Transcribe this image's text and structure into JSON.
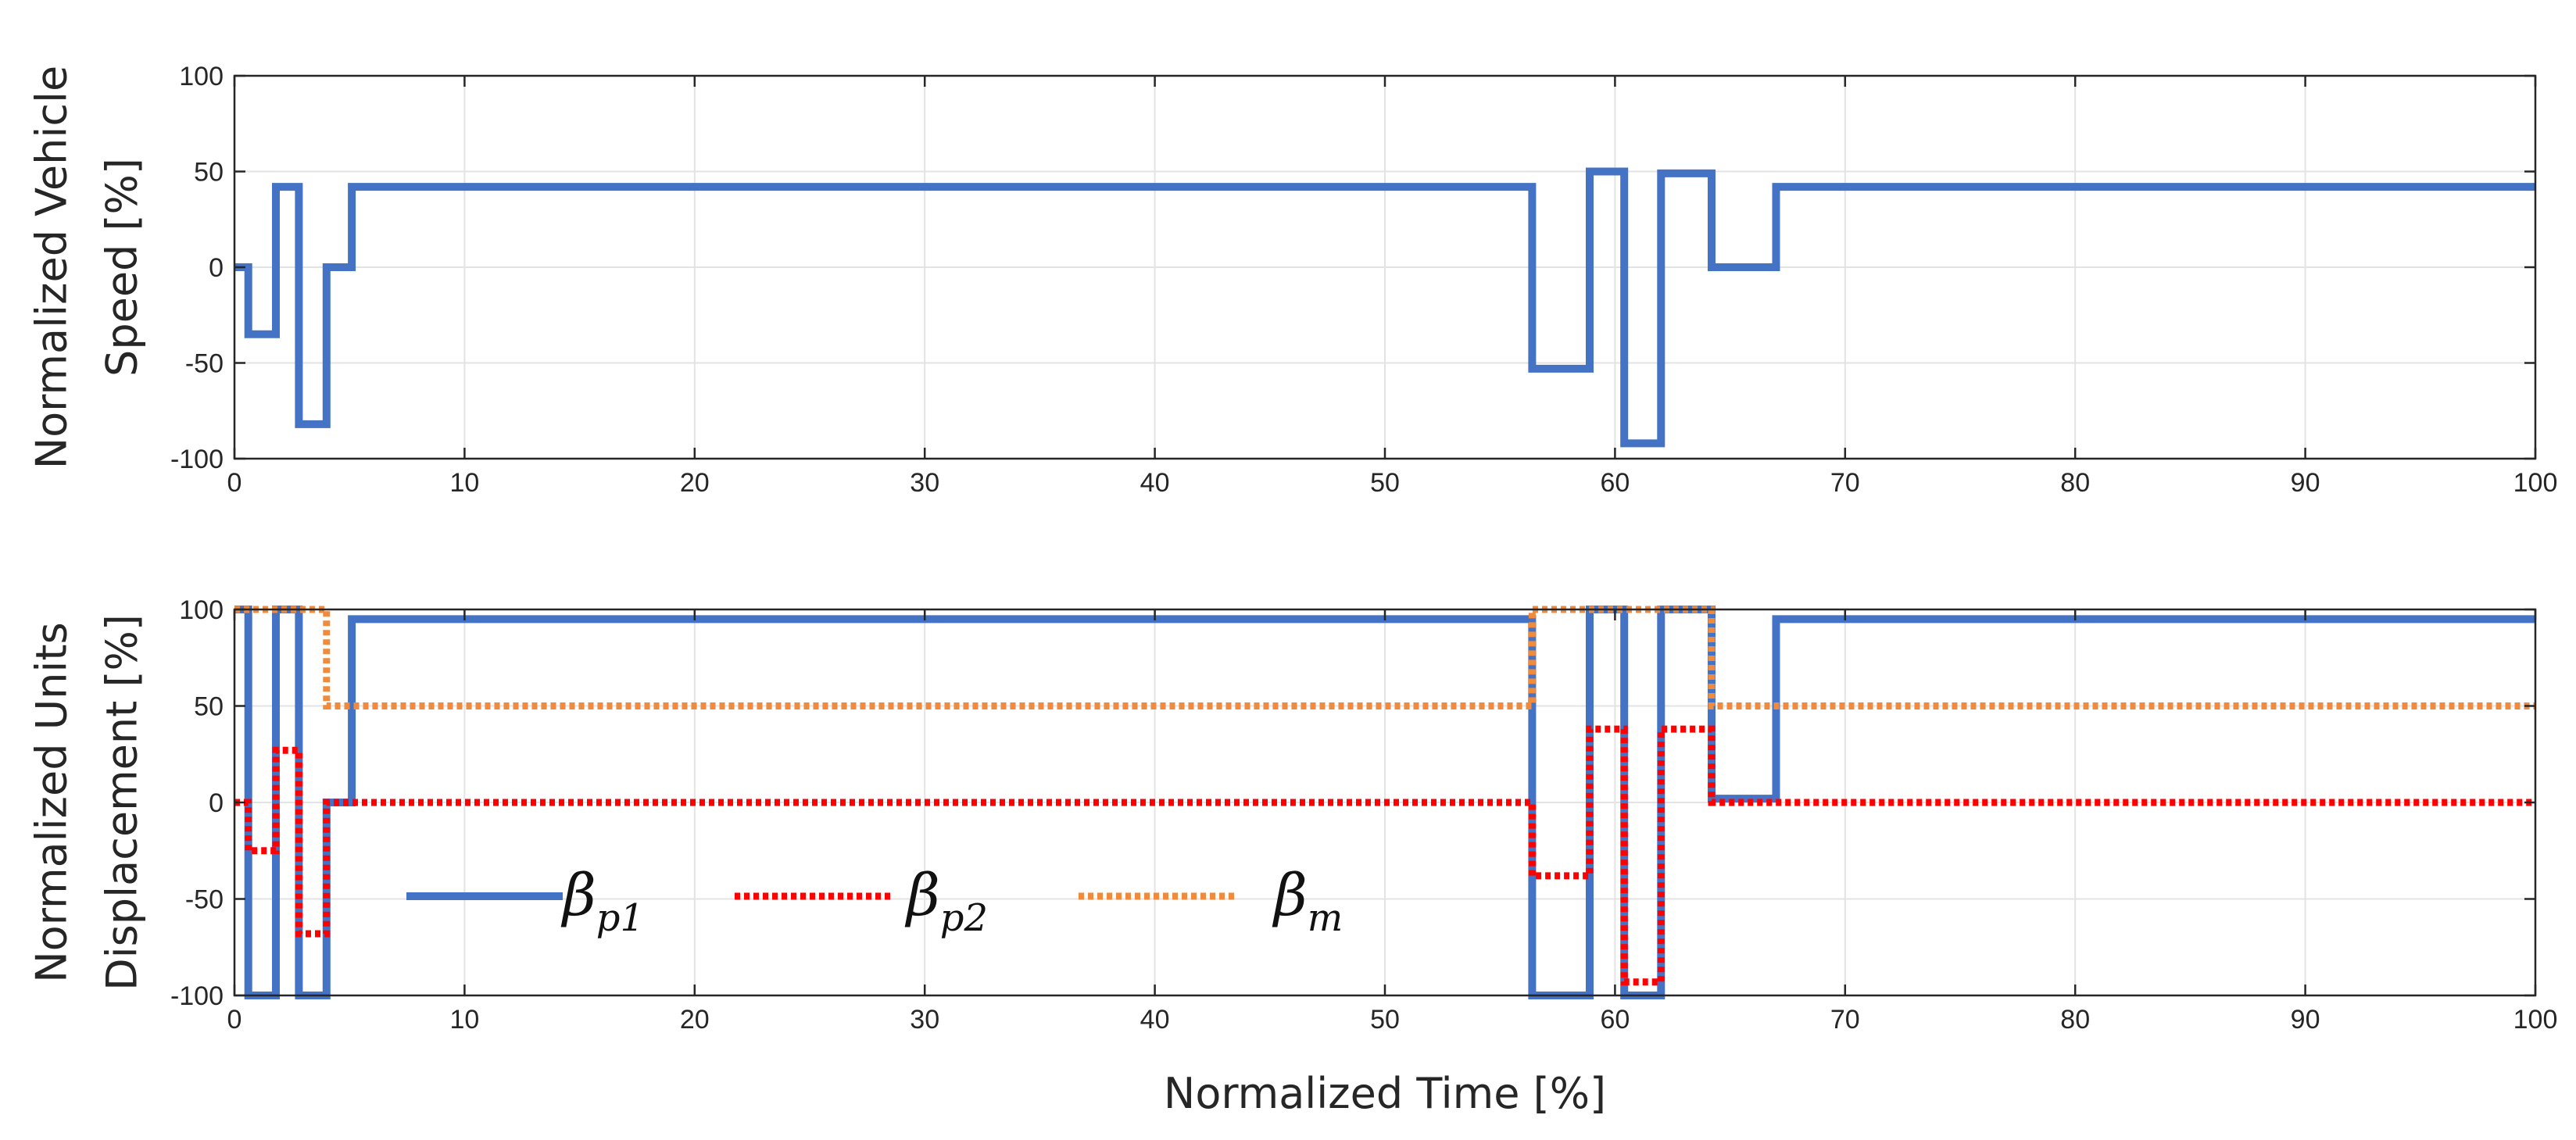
{
  "chart_data": [
    {
      "type": "line",
      "panel": "top",
      "ylabel_line1": "Normalized Vehicle",
      "ylabel_line2": "Speed [%]",
      "xlabel": "",
      "xlim": [
        0,
        100
      ],
      "ylim": [
        -100,
        100
      ],
      "xticks": [
        0,
        10,
        20,
        30,
        40,
        50,
        60,
        70,
        80,
        90,
        100
      ],
      "yticks": [
        -100,
        -50,
        0,
        50,
        100
      ],
      "grid": true,
      "series": [
        {
          "name": "Normalized Vehicle Speed",
          "color": "#4472C4",
          "style": "solid",
          "points": [
            [
              0,
              0
            ],
            [
              0.6,
              0
            ],
            [
              0.6,
              -35
            ],
            [
              1.8,
              -35
            ],
            [
              1.8,
              42
            ],
            [
              2.8,
              42
            ],
            [
              2.8,
              -82
            ],
            [
              4.0,
              -82
            ],
            [
              4.0,
              0
            ],
            [
              5.1,
              0
            ],
            [
              5.1,
              42
            ],
            [
              56.4,
              42
            ],
            [
              56.4,
              -53
            ],
            [
              58.9,
              -53
            ],
            [
              58.9,
              50
            ],
            [
              60.4,
              50
            ],
            [
              60.4,
              -92
            ],
            [
              62.0,
              -92
            ],
            [
              62.0,
              49
            ],
            [
              64.2,
              49
            ],
            [
              64.2,
              0
            ],
            [
              67.0,
              0
            ],
            [
              67.0,
              42
            ],
            [
              100,
              42
            ]
          ]
        }
      ]
    },
    {
      "type": "line",
      "panel": "bottom",
      "ylabel_line1": "Normalized Units",
      "ylabel_line2": "Displacement [%]",
      "xlabel": "Normalized Time [%]",
      "xlim": [
        0,
        100
      ],
      "ylim": [
        -100,
        100
      ],
      "xticks": [
        0,
        10,
        20,
        30,
        40,
        50,
        60,
        70,
        80,
        90,
        100
      ],
      "yticks": [
        -100,
        -50,
        0,
        50,
        100
      ],
      "grid": true,
      "legend_position": "lower-left",
      "series": [
        {
          "name": "βp1",
          "symbol": "β",
          "subscript": "p1",
          "color": "#4472C4",
          "style": "solid",
          "points": [
            [
              0,
              100
            ],
            [
              0.6,
              100
            ],
            [
              0.6,
              -100
            ],
            [
              1.8,
              -100
            ],
            [
              1.8,
              100
            ],
            [
              2.8,
              100
            ],
            [
              2.8,
              -100
            ],
            [
              4.0,
              -100
            ],
            [
              4.0,
              0
            ],
            [
              5.1,
              0
            ],
            [
              5.1,
              95
            ],
            [
              56.4,
              95
            ],
            [
              56.4,
              -100
            ],
            [
              58.9,
              -100
            ],
            [
              58.9,
              100
            ],
            [
              60.4,
              100
            ],
            [
              60.4,
              -100
            ],
            [
              62.0,
              -100
            ],
            [
              62.0,
              100
            ],
            [
              64.2,
              100
            ],
            [
              64.2,
              2
            ],
            [
              67.0,
              2
            ],
            [
              67.0,
              95
            ],
            [
              100,
              95
            ]
          ]
        },
        {
          "name": "βp2",
          "symbol": "β",
          "subscript": "p2",
          "color": "#FF0000",
          "style": "dotted",
          "points": [
            [
              0,
              0
            ],
            [
              0.6,
              0
            ],
            [
              0.6,
              -25
            ],
            [
              1.8,
              -25
            ],
            [
              1.8,
              27
            ],
            [
              2.8,
              27
            ],
            [
              2.8,
              -68
            ],
            [
              4.0,
              -68
            ],
            [
              4.0,
              0
            ],
            [
              56.4,
              0
            ],
            [
              56.4,
              -38
            ],
            [
              58.9,
              -38
            ],
            [
              58.9,
              38
            ],
            [
              60.4,
              38
            ],
            [
              60.4,
              -93
            ],
            [
              62.0,
              -93
            ],
            [
              62.0,
              38
            ],
            [
              64.2,
              38
            ],
            [
              64.2,
              0
            ],
            [
              100,
              0
            ]
          ]
        },
        {
          "name": "βm",
          "symbol": "β",
          "subscript": "m",
          "color": "#F08A3C",
          "style": "dotted",
          "points": [
            [
              0,
              100
            ],
            [
              4.0,
              100
            ],
            [
              4.0,
              50
            ],
            [
              56.4,
              50
            ],
            [
              56.4,
              100
            ],
            [
              64.2,
              100
            ],
            [
              64.2,
              50
            ],
            [
              100,
              50
            ]
          ]
        }
      ]
    }
  ]
}
